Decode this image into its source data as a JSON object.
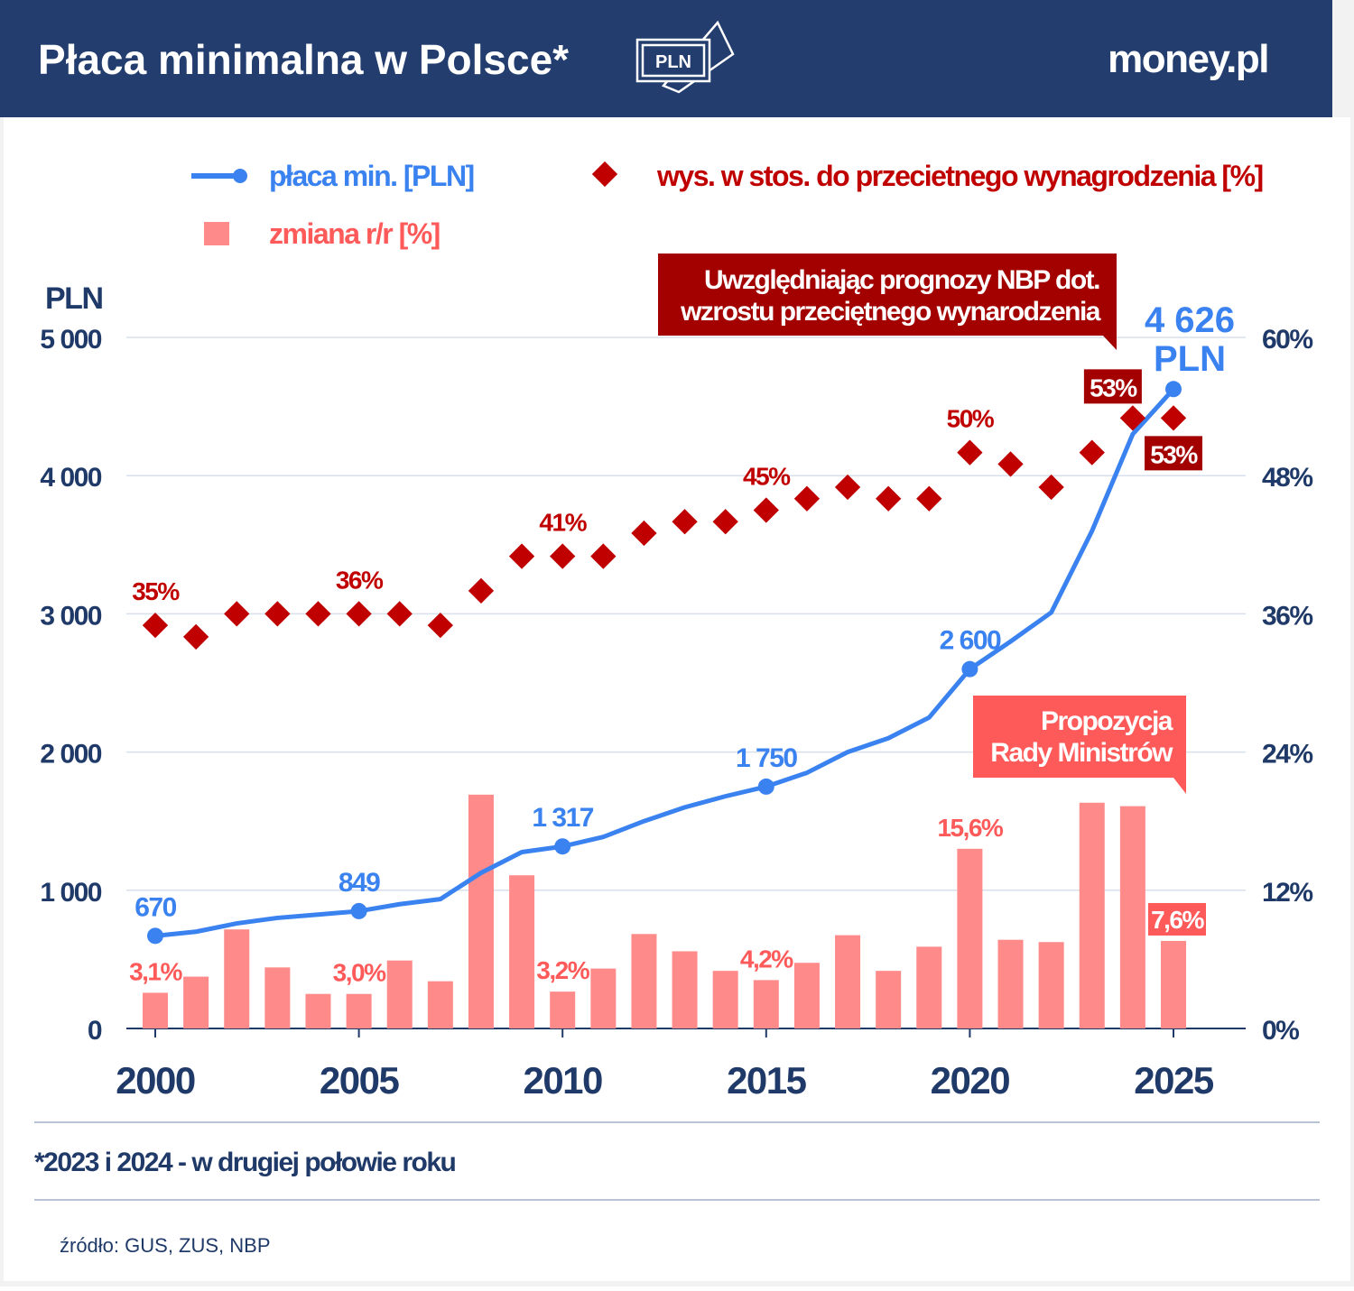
{
  "header": {
    "title": "Płaca minimalna w Polsce*",
    "badge": "PLN",
    "logo": "money.pl",
    "background": "#223d6e"
  },
  "colors": {
    "line": "#3a82f0",
    "bar": "#ff8a8a",
    "diamond": "#c00000",
    "axis_text": "#1f3a68",
    "annotation_dark": "#a30000",
    "annotation_light": "#ff5a5a"
  },
  "chart_data": {
    "type": "combo",
    "legend": {
      "placement": "top",
      "entries": [
        "płaca min. [PLN]",
        "wys. w stos. do przecietnego wynagrodzenia [%]",
        "zmiana r/r [%]"
      ]
    },
    "left_axis": {
      "label": "PLN",
      "range": [
        0,
        5000
      ],
      "ticks": [
        "0",
        "1 000",
        "2 000",
        "3 000",
        "4 000",
        "5 000"
      ]
    },
    "right_axis": {
      "range": [
        0,
        60
      ],
      "ticks": [
        "0%",
        "12%",
        "24%",
        "36%",
        "48%",
        "60%"
      ]
    },
    "x_axis": {
      "ticks": [
        "2000",
        "2005",
        "2010",
        "2015",
        "2020",
        "2025"
      ]
    },
    "grid": true,
    "years": [
      2000,
      2001,
      2002,
      2003,
      2004,
      2005,
      2006,
      2007,
      2008,
      2009,
      2010,
      2011,
      2012,
      2013,
      2014,
      2015,
      2016,
      2017,
      2018,
      2019,
      2020,
      2021,
      2022,
      2023,
      2024,
      2025
    ],
    "series": [
      {
        "name": "płaca min. [PLN]",
        "type": "line",
        "axis": "left",
        "values": [
          670,
          700,
          760,
          800,
          824,
          849,
          899,
          936,
          1126,
          1276,
          1317,
          1386,
          1500,
          1600,
          1680,
          1750,
          1850,
          2000,
          2100,
          2250,
          2600,
          2800,
          3010,
          3600,
          4300,
          4626
        ]
      },
      {
        "name": "zmiana r/r [%]",
        "type": "bar",
        "axis": "right",
        "values": [
          3.1,
          4.5,
          8.6,
          5.3,
          3.0,
          3.0,
          5.9,
          4.1,
          20.3,
          13.3,
          3.2,
          5.2,
          8.2,
          6.7,
          5.0,
          4.2,
          5.7,
          8.1,
          5.0,
          7.1,
          15.6,
          7.7,
          7.5,
          19.6,
          19.3,
          7.6
        ]
      },
      {
        "name": "wys. w stos. do przecietnego wynagrodzenia [%]",
        "type": "scatter",
        "axis": "right",
        "values": [
          35,
          34,
          36,
          36,
          36,
          36,
          36,
          35,
          38,
          41,
          41,
          41,
          43,
          44,
          44,
          45,
          46,
          47,
          46,
          46,
          50,
          49,
          47,
          50,
          53,
          53
        ]
      }
    ],
    "line_labels": [
      {
        "year": 2000,
        "text": "670"
      },
      {
        "year": 2005,
        "text": "849"
      },
      {
        "year": 2010,
        "text": "1 317"
      },
      {
        "year": 2015,
        "text": "1 750"
      },
      {
        "year": 2020,
        "text": "2 600"
      }
    ],
    "line_final_label": [
      "4 626",
      "PLN"
    ],
    "bar_labels": [
      {
        "year": 2000,
        "text": "3,1%"
      },
      {
        "year": 2005,
        "text": "3,0%"
      },
      {
        "year": 2010,
        "text": "3,2%"
      },
      {
        "year": 2015,
        "text": "4,2%"
      },
      {
        "year": 2020,
        "text": "15,6%"
      },
      {
        "year": 2025,
        "text": "7,6%",
        "boxed": true
      }
    ],
    "diamond_labels": [
      {
        "year": 2000,
        "text": "35%"
      },
      {
        "year": 2005,
        "text": "36%"
      },
      {
        "year": 2010,
        "text": "41%"
      },
      {
        "year": 2015,
        "text": "45%"
      },
      {
        "year": 2020,
        "text": "50%"
      },
      {
        "year": 2024,
        "text": "53%",
        "boxed": true
      },
      {
        "year": 2025,
        "text": "53%",
        "boxed": true
      }
    ],
    "callouts": {
      "nbp": [
        "Uwzględniając prognozy NBP dot.",
        "wzrostu przeciętnego wynarodzenia"
      ],
      "rada": [
        "Propozycja",
        "Rady Ministrów"
      ]
    }
  },
  "footer": {
    "note": "*2023 i 2024 - w drugiej połowie roku",
    "source": "źródło: GUS, ZUS, NBP"
  }
}
